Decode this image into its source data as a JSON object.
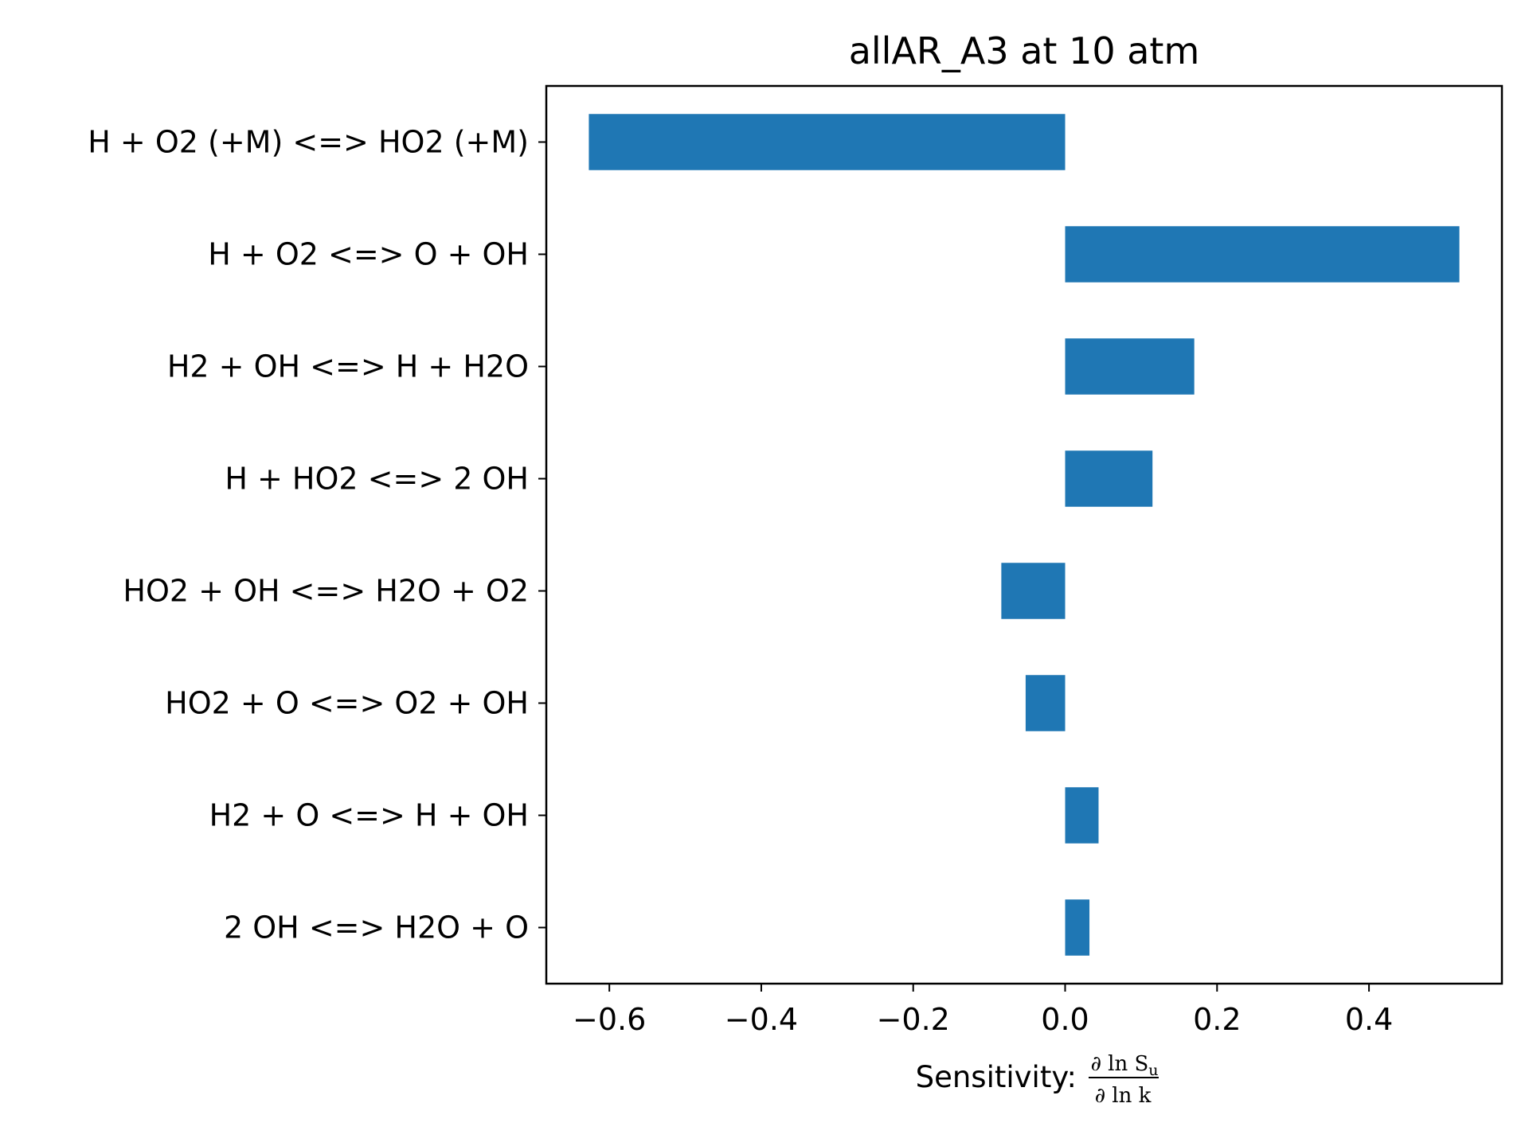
{
  "chart_data": {
    "type": "bar",
    "orientation": "horizontal",
    "title": "allAR_A3 at 10 atm",
    "xlabel": "Sensitivity:",
    "xlabel_fraction": {
      "numerator": "∂ ln S",
      "numerator_subscript": "u",
      "denominator": "∂ ln k"
    },
    "ylabel": "",
    "categories": [
      "H + O2 (+M) <=> HO2 (+M)",
      "H + O2 <=> O + OH",
      "H2 + OH <=> H + H2O",
      "H + HO2 <=> 2 OH",
      "HO2 + OH <=> H2O + O2",
      "HO2 + O <=> O2 + OH",
      "H2 + O <=> H + OH",
      "2 OH <=> H2O + O"
    ],
    "values": [
      -0.627,
      0.519,
      0.17,
      0.115,
      -0.084,
      -0.052,
      0.044,
      0.032
    ],
    "xlim": [
      -0.683,
      0.575
    ],
    "xticks": [
      -0.6,
      -0.4,
      -0.2,
      0.0,
      0.2,
      0.4
    ],
    "xtick_labels": [
      "−0.6",
      "−0.4",
      "−0.2",
      "0.0",
      "0.2",
      "0.4"
    ],
    "bar_color": "#1f77b4",
    "grid": false,
    "legend": null
  }
}
